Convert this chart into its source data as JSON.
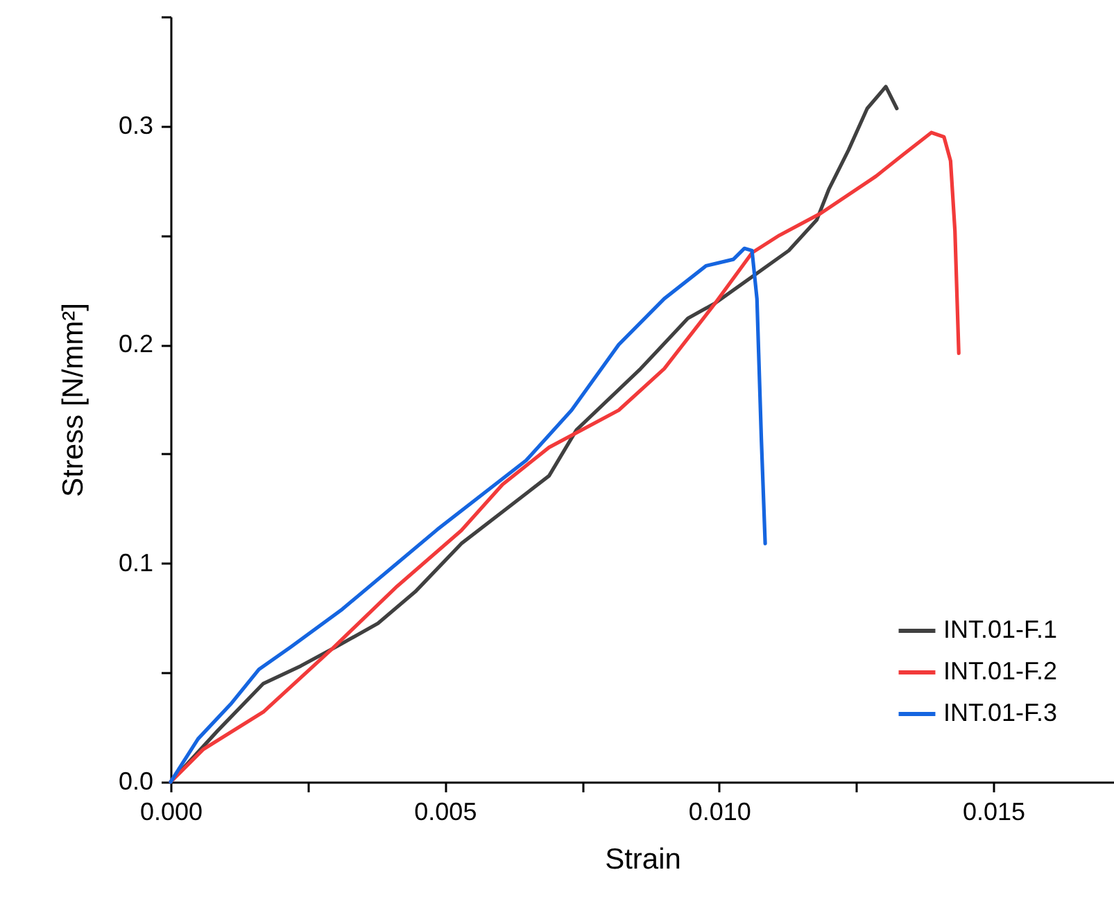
{
  "chart_data": {
    "type": "line",
    "xlabel": "Strain",
    "ylabel": "Stress [N/mm²]",
    "xlim": [
      0,
      0.0172
    ],
    "ylim": [
      0,
      0.35
    ],
    "xticks": [
      {
        "value": 0,
        "label": "0.000"
      },
      {
        "value": 0.0025,
        "label": null
      },
      {
        "value": 0.005,
        "label": "0.005"
      },
      {
        "value": 0.0075,
        "label": null
      },
      {
        "value": 0.01,
        "label": "0.010"
      },
      {
        "value": 0.0125,
        "label": null
      },
      {
        "value": 0.015,
        "label": "0.015"
      }
    ],
    "yticks": [
      {
        "value": 0,
        "label": "0.0"
      },
      {
        "value": 0.05,
        "label": null
      },
      {
        "value": 0.1,
        "label": "0.1"
      },
      {
        "value": 0.15,
        "label": null
      },
      {
        "value": 0.2,
        "label": "0.2"
      },
      {
        "value": 0.25,
        "label": null
      },
      {
        "value": 0.3,
        "label": "0.3"
      },
      {
        "value": 0.35,
        "label": null
      }
    ],
    "grid": false,
    "legend": "bottom right",
    "marker": "none",
    "line_style": "solid",
    "series": [
      {
        "name": "INT.01-F.1",
        "color": "#404040",
        "x": [
          0,
          0.00086,
          0.00169,
          0.00237,
          0.00303,
          0.00378,
          0.00446,
          0.0053,
          0.0069,
          0.0074,
          0.00857,
          0.00943,
          0.00993,
          0.0106,
          0.01127,
          0.01178,
          0.012,
          0.01236,
          0.0127,
          0.01304,
          0.01324
        ],
        "values": [
          0,
          0.0235,
          0.045,
          0.053,
          0.062,
          0.0725,
          0.087,
          0.109,
          0.14,
          0.161,
          0.189,
          0.212,
          0.219,
          0.231,
          0.243,
          0.257,
          0.271,
          0.289,
          0.308,
          0.318,
          0.308
        ]
      },
      {
        "name": "INT.01-F.2",
        "color": "#f23a3a",
        "x": [
          0,
          0.0006,
          0.00169,
          0.00295,
          0.00413,
          0.0053,
          0.00605,
          0.0069,
          0.00817,
          0.009,
          0.00993,
          0.0106,
          0.0111,
          0.01185,
          0.01286,
          0.01336,
          0.01387,
          0.0141,
          0.01422,
          0.0143,
          0.01437
        ],
        "values": [
          0,
          0.015,
          0.032,
          0.061,
          0.0895,
          0.115,
          0.136,
          0.153,
          0.17,
          0.189,
          0.219,
          0.242,
          0.25,
          0.26,
          0.277,
          0.287,
          0.297,
          0.295,
          0.284,
          0.252,
          0.196
        ]
      },
      {
        "name": "INT.01-F.3",
        "color": "#1565e0",
        "x": [
          0,
          0.0005,
          0.00111,
          0.00161,
          0.00219,
          0.00313,
          0.00413,
          0.00489,
          0.00648,
          0.00731,
          0.00817,
          0.009,
          0.00976,
          0.01026,
          0.01046,
          0.0106,
          0.01069,
          0.01077,
          0.01084
        ],
        "values": [
          0,
          0.0197,
          0.036,
          0.0515,
          0.0617,
          0.079,
          0.1,
          0.116,
          0.147,
          0.17,
          0.2,
          0.221,
          0.236,
          0.239,
          0.244,
          0.243,
          0.221,
          0.157,
          0.109
        ]
      }
    ]
  }
}
